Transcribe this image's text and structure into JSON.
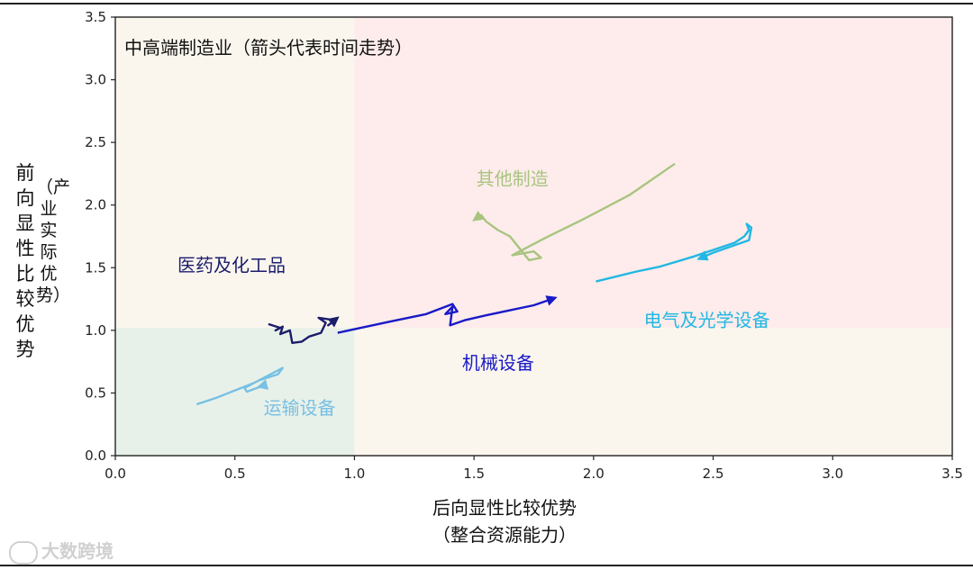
{
  "chart_data": {
    "type": "line",
    "title": "中高端制造业（箭头代表时间走势）",
    "xlabel": "后向显性比较优势",
    "xlabel_sub": "（整合资源能力）",
    "ylabel": "前向显性比较优势",
    "ylabel_sub": "（产业实际优势）",
    "xlim": [
      0,
      3.5
    ],
    "ylim": [
      0,
      3.5
    ],
    "xticks": [
      "0.0",
      "0.5",
      "1.0",
      "1.5",
      "2.0",
      "2.5",
      "3.0",
      "3.5"
    ],
    "yticks": [
      "0.0",
      "0.5",
      "1.0",
      "1.5",
      "2.0",
      "2.5",
      "3.0",
      "3.5"
    ],
    "grid": false,
    "regions": [
      {
        "x": [
          0,
          1
        ],
        "y": [
          0,
          1.02
        ],
        "color": "#e8f1e9"
      },
      {
        "x": [
          0,
          1
        ],
        "y": [
          1.02,
          3.5
        ],
        "color": "#faf6ee"
      },
      {
        "x": [
          1,
          3.5
        ],
        "y": [
          1.02,
          3.5
        ],
        "color": "#fdeceb"
      },
      {
        "x": [
          1,
          3.5
        ],
        "y": [
          0,
          1.02
        ],
        "color": "#faf6ee"
      }
    ],
    "series": [
      {
        "name": "医药及化工品",
        "color": "#1b1d6b",
        "label_pos": [
          0.26,
          1.47
        ],
        "x": [
          0.64,
          0.69,
          0.67,
          0.7,
          0.69,
          0.73,
          0.74,
          0.78,
          0.81,
          0.86,
          0.88,
          0.85,
          0.92,
          0.89,
          0.93
        ],
        "y": [
          1.05,
          1.02,
          1.0,
          1.03,
          0.97,
          1.0,
          0.9,
          0.91,
          0.95,
          0.98,
          1.06,
          1.1,
          1.08,
          1.04,
          1.1
        ]
      },
      {
        "name": "机械设备",
        "color": "#1919c7",
        "label_pos": [
          1.45,
          0.69
        ],
        "x": [
          0.93,
          1.15,
          1.3,
          1.41,
          1.43,
          1.38,
          1.41,
          1.4,
          1.46,
          1.55,
          1.65,
          1.75,
          1.84
        ],
        "y": [
          0.98,
          1.07,
          1.13,
          1.21,
          1.15,
          1.13,
          1.19,
          1.04,
          1.08,
          1.12,
          1.16,
          1.2,
          1.26
        ]
      },
      {
        "name": "其他制造",
        "color": "#a9c47f",
        "label_pos": [
          1.51,
          2.16
        ],
        "x": [
          2.34,
          2.15,
          1.95,
          1.8,
          1.66,
          1.75,
          1.78,
          1.73,
          1.65,
          1.6,
          1.55,
          1.53,
          1.5
        ],
        "y": [
          2.33,
          2.08,
          1.88,
          1.74,
          1.6,
          1.63,
          1.58,
          1.56,
          1.75,
          1.8,
          1.87,
          1.92,
          1.88
        ]
      },
      {
        "name": "电气及光学设备",
        "color": "#21b7e3",
        "label_pos": [
          2.21,
          1.03
        ],
        "x": [
          2.01,
          2.18,
          2.28,
          2.42,
          2.59,
          2.63,
          2.65,
          2.64,
          2.66,
          2.65,
          2.59,
          2.5,
          2.44
        ],
        "y": [
          1.39,
          1.47,
          1.51,
          1.59,
          1.7,
          1.75,
          1.8,
          1.85,
          1.82,
          1.72,
          1.68,
          1.62,
          1.57
        ]
      },
      {
        "name": "运输设备",
        "color": "#78c0e4",
        "label_pos": [
          0.62,
          0.33
        ],
        "x": [
          0.34,
          0.42,
          0.5,
          0.58,
          0.65,
          0.7,
          0.68,
          0.6,
          0.54,
          0.55,
          0.62,
          0.6
        ],
        "y": [
          0.41,
          0.46,
          0.52,
          0.58,
          0.65,
          0.7,
          0.65,
          0.6,
          0.54,
          0.51,
          0.56,
          0.55
        ]
      }
    ]
  },
  "watermark": "大数跨境"
}
